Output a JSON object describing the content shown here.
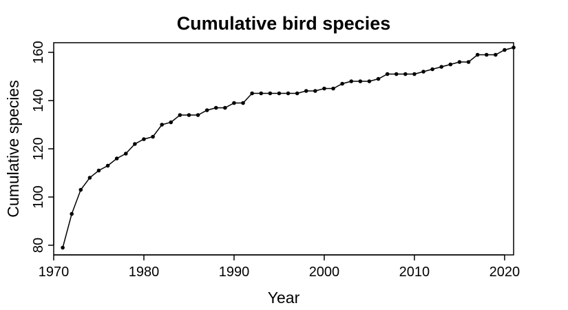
{
  "chart_data": {
    "type": "line",
    "title": "Cumulative bird species",
    "xlabel": "Year",
    "ylabel": "Cumulative species",
    "xlim": [
      1970,
      2021
    ],
    "ylim": [
      76,
      164
    ],
    "x_ticks": [
      1970,
      1980,
      1990,
      2000,
      2010,
      2020
    ],
    "y_ticks": [
      80,
      100,
      120,
      140,
      160
    ],
    "grid": false,
    "legend": "none",
    "series": [
      {
        "x": [
          1971,
          1972,
          1973,
          1974,
          1975,
          1976,
          1977,
          1978,
          1979,
          1980,
          1981,
          1982,
          1983,
          1984,
          1985,
          1986,
          1987,
          1988,
          1989,
          1990,
          1991,
          1992,
          1993,
          1994,
          1995,
          1996,
          1997,
          1998,
          1999,
          2000,
          2001,
          2002,
          2003,
          2004,
          2005,
          2006,
          2007,
          2008,
          2009,
          2010,
          2011,
          2012,
          2013,
          2014,
          2015,
          2016,
          2017,
          2018,
          2019,
          2020,
          2021
        ],
        "values": [
          79,
          93,
          103,
          108,
          111,
          113,
          116,
          118,
          122,
          124,
          125,
          130,
          131,
          134,
          134,
          134,
          136,
          137,
          137,
          139,
          139,
          143,
          143,
          143,
          143,
          143,
          143,
          144,
          144,
          145,
          145,
          147,
          148,
          148,
          148,
          149,
          151,
          151,
          151,
          151,
          152,
          153,
          154,
          155,
          156,
          156,
          159,
          159,
          159,
          161,
          162
        ]
      }
    ]
  }
}
